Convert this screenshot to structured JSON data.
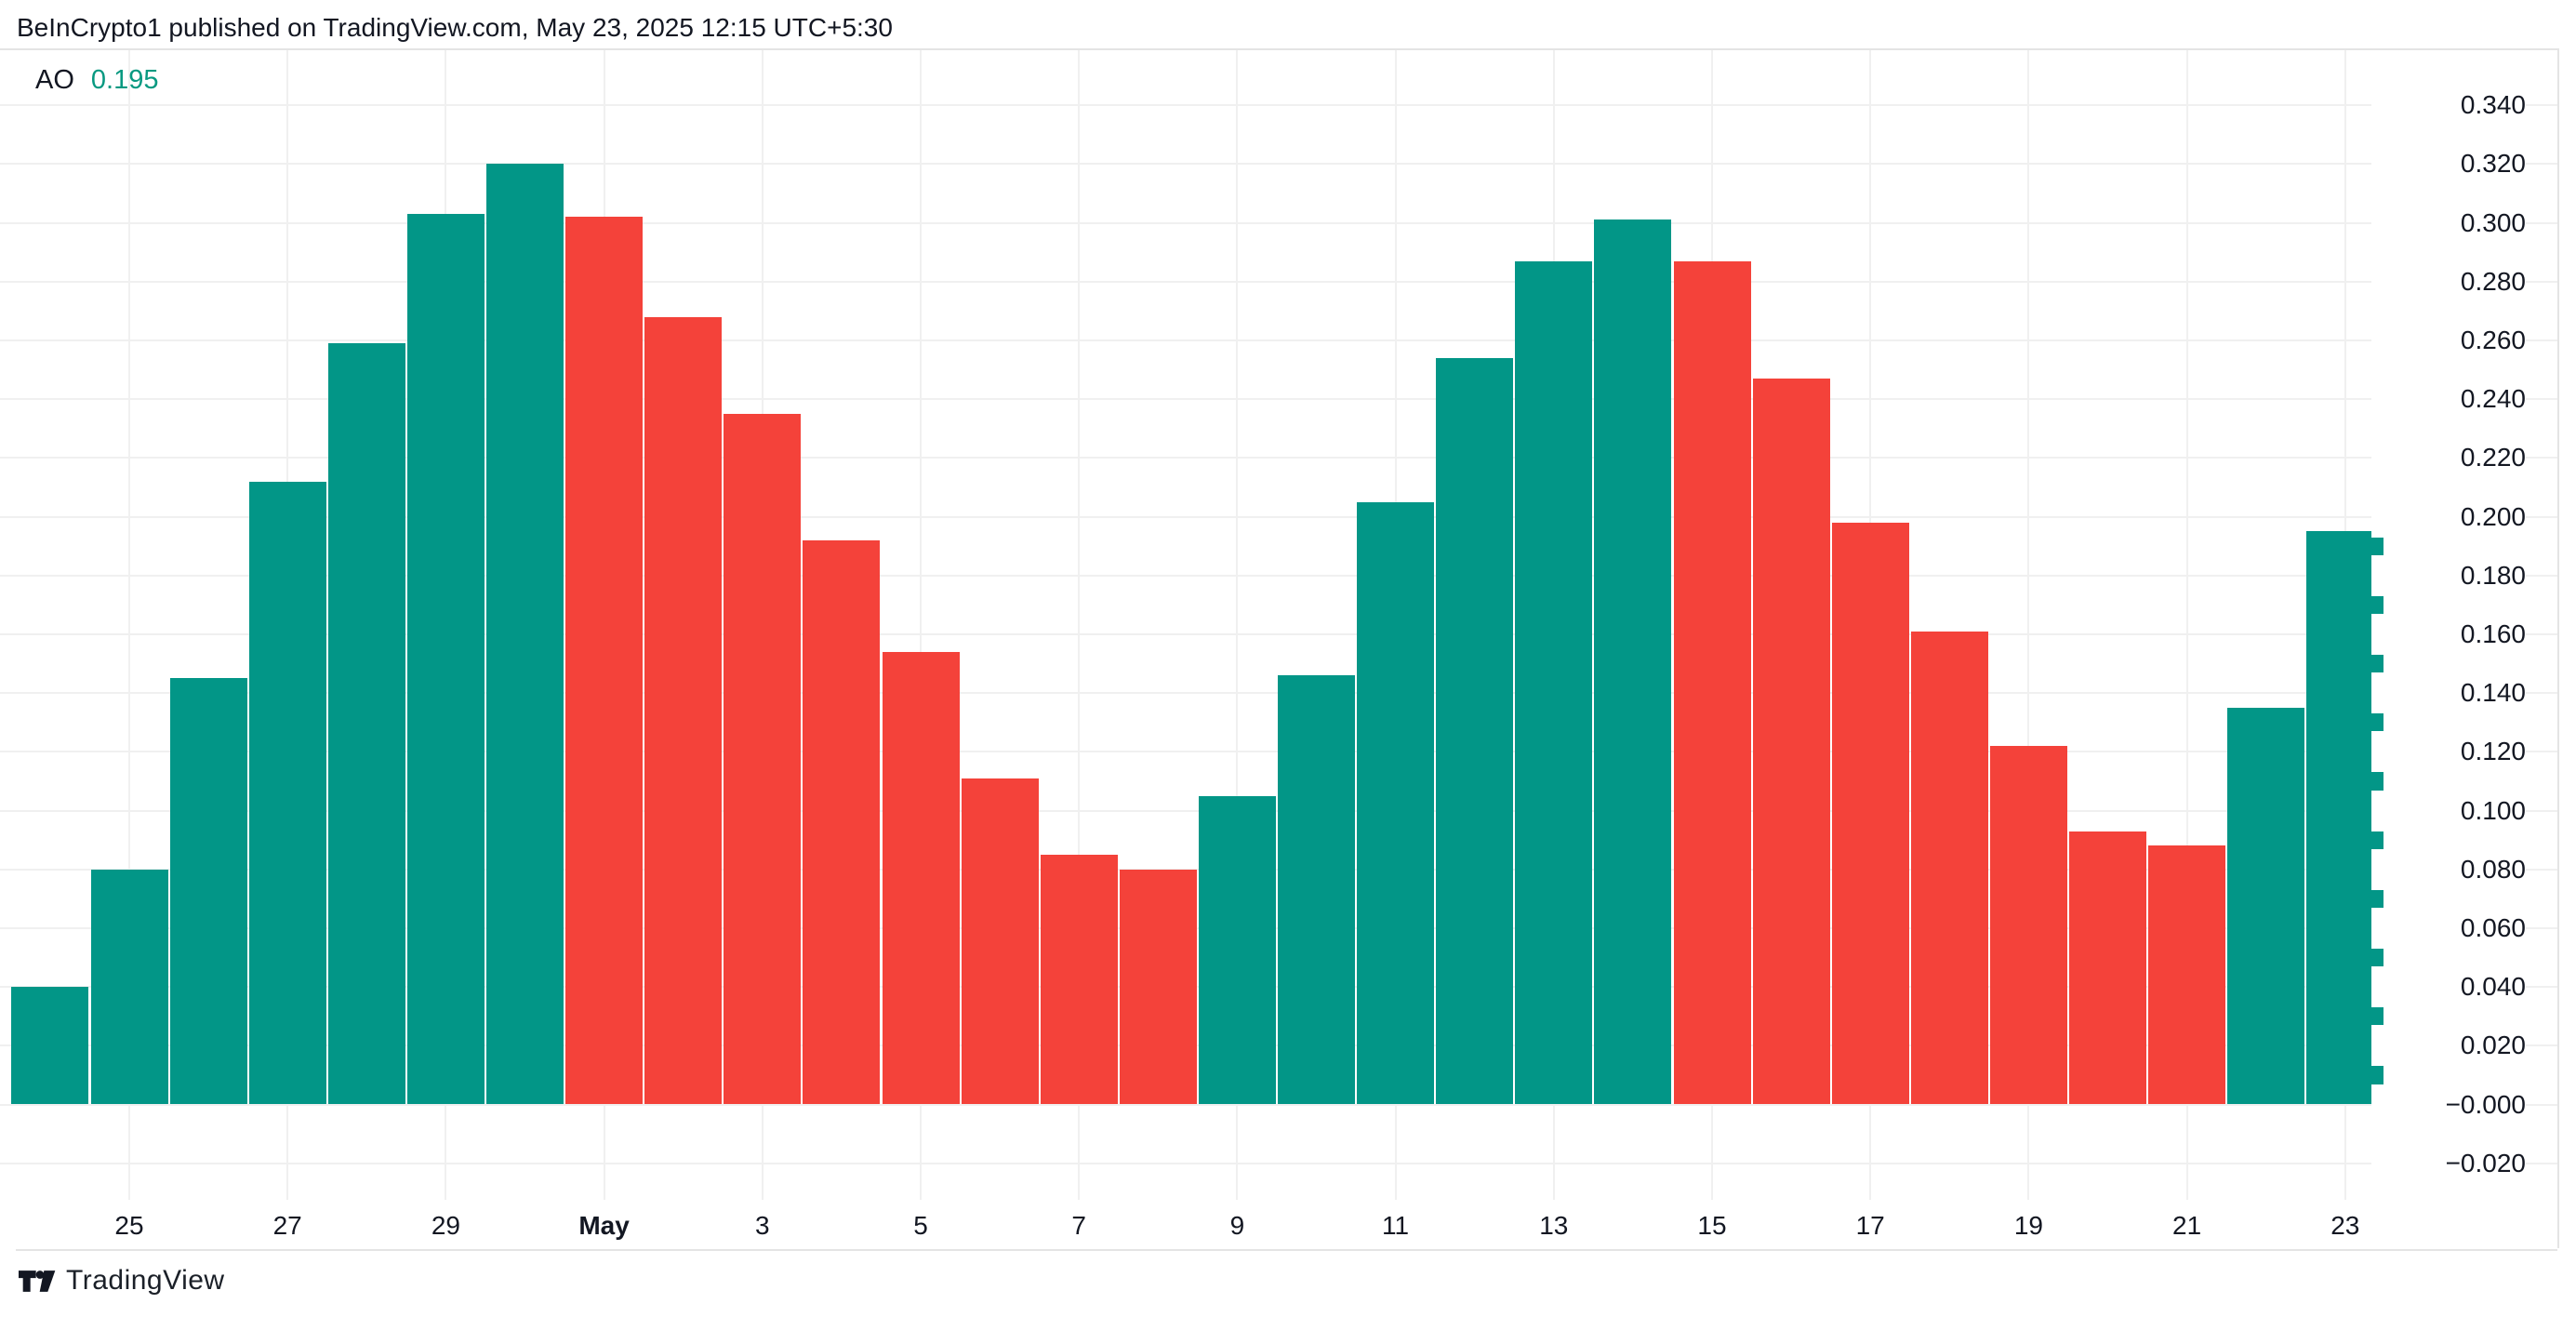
{
  "header": {
    "attribution": "BeInCrypto1 published on TradingView.com, May 23, 2025 12:15 UTC+5:30"
  },
  "indicator": {
    "name": "AO",
    "value": "0.195"
  },
  "footer": {
    "brand": "TradingView"
  },
  "colors": {
    "up": "#029687",
    "down": "#F4423A",
    "value_text": "#089981",
    "grid": "#f0f0f0",
    "border": "#e4e4e4",
    "text": "#131722"
  },
  "chart_data": {
    "type": "bar",
    "title": "AO",
    "last_value": 0.195,
    "x": [
      "Apr 24",
      "Apr 25",
      "Apr 26",
      "Apr 27",
      "Apr 28",
      "Apr 29",
      "Apr 30",
      "May 1",
      "May 2",
      "May 3",
      "May 4",
      "May 5",
      "May 6",
      "May 7",
      "May 8",
      "May 9",
      "May 10",
      "May 11",
      "May 12",
      "May 13",
      "May 14",
      "May 15",
      "May 16",
      "May 17",
      "May 18",
      "May 19",
      "May 20",
      "May 21",
      "May 22",
      "May 23"
    ],
    "values": [
      0.04,
      0.08,
      0.145,
      0.212,
      0.259,
      0.303,
      0.32,
      0.302,
      0.268,
      0.235,
      0.192,
      0.154,
      0.111,
      0.085,
      0.08,
      0.105,
      0.146,
      0.205,
      0.254,
      0.287,
      0.301,
      0.287,
      0.247,
      0.198,
      0.161,
      0.122,
      0.093,
      0.088,
      0.135,
      0.195
    ],
    "directions": [
      "up",
      "up",
      "up",
      "up",
      "up",
      "up",
      "up",
      "down",
      "down",
      "down",
      "down",
      "down",
      "down",
      "down",
      "down",
      "up",
      "up",
      "up",
      "up",
      "up",
      "up",
      "down",
      "down",
      "down",
      "down",
      "down",
      "down",
      "down",
      "up",
      "up"
    ],
    "x_ticks": [
      {
        "index": 1,
        "label": "25"
      },
      {
        "index": 3,
        "label": "27"
      },
      {
        "index": 5,
        "label": "29"
      },
      {
        "index": 7,
        "label": "May",
        "bold": true
      },
      {
        "index": 9,
        "label": "3"
      },
      {
        "index": 11,
        "label": "5"
      },
      {
        "index": 13,
        "label": "7"
      },
      {
        "index": 15,
        "label": "9"
      },
      {
        "index": 17,
        "label": "11"
      },
      {
        "index": 19,
        "label": "13"
      },
      {
        "index": 21,
        "label": "15"
      },
      {
        "index": 23,
        "label": "17"
      },
      {
        "index": 25,
        "label": "19"
      },
      {
        "index": 27,
        "label": "21"
      },
      {
        "index": 29,
        "label": "23"
      }
    ],
    "y_ticks": [
      {
        "value": 0.34,
        "label": "0.340"
      },
      {
        "value": 0.32,
        "label": "0.320"
      },
      {
        "value": 0.3,
        "label": "0.300"
      },
      {
        "value": 0.28,
        "label": "0.280"
      },
      {
        "value": 0.26,
        "label": "0.260"
      },
      {
        "value": 0.24,
        "label": "0.240"
      },
      {
        "value": 0.22,
        "label": "0.220"
      },
      {
        "value": 0.2,
        "label": "0.200"
      },
      {
        "value": 0.18,
        "label": "0.180"
      },
      {
        "value": 0.16,
        "label": "0.160"
      },
      {
        "value": 0.14,
        "label": "0.140"
      },
      {
        "value": 0.12,
        "label": "0.120"
      },
      {
        "value": 0.1,
        "label": "0.100"
      },
      {
        "value": 0.08,
        "label": "0.080"
      },
      {
        "value": 0.06,
        "label": "0.060"
      },
      {
        "value": 0.04,
        "label": "0.040"
      },
      {
        "value": 0.02,
        "label": "0.020"
      },
      {
        "value": 0.0,
        "label": "−0.000"
      },
      {
        "value": -0.02,
        "label": "−0.020"
      }
    ],
    "ylim": [
      -0.02,
      0.34
    ],
    "grid": true,
    "legend_position": "none"
  }
}
